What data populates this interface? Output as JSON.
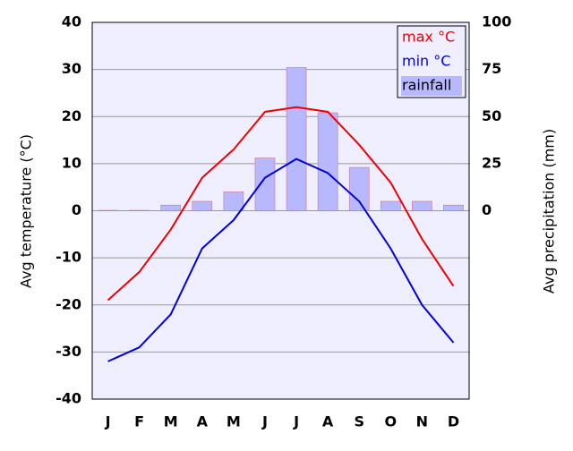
{
  "chart_data": {
    "type": "bar",
    "categories": [
      "J",
      "F",
      "M",
      "A",
      "M",
      "J",
      "J",
      "A",
      "S",
      "O",
      "N",
      "D"
    ],
    "ylabel": "Avg temperature (°C)",
    "y2label": "Avg precipitation (mm)",
    "ylim": [
      -40,
      40
    ],
    "yticks": [
      -40,
      -30,
      -20,
      -10,
      0,
      10,
      20,
      30,
      40
    ],
    "y2lim": [
      -100,
      100
    ],
    "y2ticks": [
      0,
      25,
      50,
      75,
      100
    ],
    "grid": true,
    "legend": "top-right",
    "series": [
      {
        "name": "max °C",
        "type": "line",
        "color": "#ee0000",
        "values": [
          -19,
          -13,
          -4,
          7,
          13,
          21,
          22,
          21,
          14,
          6,
          -6,
          -16
        ]
      },
      {
        "name": "min °C",
        "type": "line",
        "color": "#0000dd",
        "values": [
          -32,
          -29,
          -22,
          -8,
          -2,
          7,
          11,
          8,
          2,
          -8,
          -20,
          -28
        ]
      },
      {
        "name": "rainfall",
        "type": "bar",
        "axis": "y2",
        "color": "#b8b8ff",
        "values": [
          0.2,
          0.2,
          3,
          5,
          10,
          28,
          76,
          52,
          23,
          5,
          5,
          3
        ]
      }
    ]
  }
}
